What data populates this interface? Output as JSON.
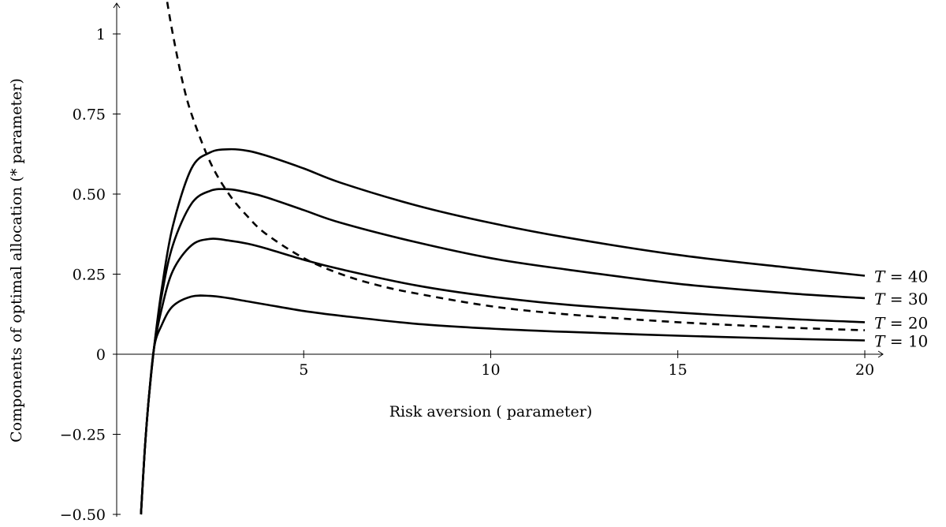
{
  "chart_data": {
    "type": "line",
    "title": "",
    "xlabel": "Risk aversion ( parameter)",
    "ylabel": "Components of optimal allocation (* parameter)",
    "xlim": [
      0,
      21
    ],
    "ylim": [
      -0.5,
      1.1
    ],
    "xticks": [
      {
        "value": 5,
        "label": "5"
      },
      {
        "value": 10,
        "label": "10"
      },
      {
        "value": 15,
        "label": "15"
      },
      {
        "value": 20,
        "label": "20"
      }
    ],
    "yticks": [
      {
        "value": -0.5,
        "label": "−0.50"
      },
      {
        "value": -0.25,
        "label": "−0.25"
      },
      {
        "value": 0,
        "label": "0"
      },
      {
        "value": 0.25,
        "label": "0.25"
      },
      {
        "value": 0.5,
        "label": "0.50"
      },
      {
        "value": 0.75,
        "label": "0.75"
      },
      {
        "value": 1,
        "label": "1"
      }
    ],
    "grid": false,
    "legend": "none",
    "series": [
      {
        "name": "T = 40",
        "style": "solid",
        "x": [
          0.65,
          0.75,
          0.85,
          1.0,
          1.2,
          1.5,
          2.0,
          2.5,
          3.0,
          3.5,
          4.0,
          5.0,
          6.0,
          8.0,
          10.0,
          12.0,
          15.0,
          18.0,
          20.0
        ],
        "y": [
          -0.5,
          -0.3,
          -0.15,
          0.02,
          0.2,
          0.4,
          0.58,
          0.63,
          0.64,
          0.635,
          0.62,
          0.58,
          0.535,
          0.465,
          0.41,
          0.365,
          0.31,
          0.27,
          0.245
        ]
      },
      {
        "name": "T = 30",
        "style": "solid",
        "x": [
          0.65,
          0.75,
          0.85,
          1.0,
          1.2,
          1.5,
          2.0,
          2.5,
          3.0,
          3.5,
          4.0,
          5.0,
          6.0,
          8.0,
          10.0,
          12.0,
          15.0,
          18.0,
          20.0
        ],
        "y": [
          -0.5,
          -0.3,
          -0.15,
          0.02,
          0.18,
          0.34,
          0.47,
          0.51,
          0.515,
          0.505,
          0.49,
          0.45,
          0.41,
          0.35,
          0.3,
          0.265,
          0.22,
          0.19,
          0.175
        ]
      },
      {
        "name": "T = 20",
        "style": "solid",
        "x": [
          0.65,
          0.75,
          0.85,
          1.0,
          1.2,
          1.5,
          2.0,
          2.5,
          3.0,
          3.5,
          4.0,
          5.0,
          6.0,
          8.0,
          10.0,
          12.0,
          15.0,
          18.0,
          20.0
        ],
        "y": [
          -0.5,
          -0.3,
          -0.15,
          0.02,
          0.14,
          0.26,
          0.34,
          0.36,
          0.355,
          0.345,
          0.33,
          0.295,
          0.265,
          0.215,
          0.18,
          0.155,
          0.13,
          0.11,
          0.1
        ]
      },
      {
        "name": "T = 10",
        "style": "solid",
        "x": [
          0.65,
          0.75,
          0.85,
          1.0,
          1.2,
          1.5,
          2.0,
          2.5,
          3.0,
          3.5,
          4.0,
          5.0,
          6.0,
          8.0,
          10.0,
          12.0,
          15.0,
          18.0,
          20.0
        ],
        "y": [
          -0.5,
          -0.3,
          -0.15,
          0.02,
          0.09,
          0.15,
          0.18,
          0.182,
          0.175,
          0.165,
          0.155,
          0.135,
          0.12,
          0.095,
          0.08,
          0.07,
          0.058,
          0.048,
          0.043
        ]
      },
      {
        "name": "",
        "style": "dashed",
        "x": [
          1.35,
          1.5,
          1.75,
          2.0,
          2.5,
          3.0,
          3.5,
          4.0,
          5.0,
          6.0,
          7.0,
          8.0,
          10.0,
          12.0,
          15.0,
          18.0,
          20.0
        ],
        "y": [
          1.1,
          1.0,
          0.857,
          0.75,
          0.6,
          0.5,
          0.43,
          0.375,
          0.3,
          0.25,
          0.215,
          0.19,
          0.15,
          0.125,
          0.1,
          0.083,
          0.075
        ]
      }
    ],
    "annotations": [
      {
        "prefix": "T",
        "text": " = 40",
        "series": "T = 40"
      },
      {
        "prefix": "T",
        "text": " = 30",
        "series": "T = 30"
      },
      {
        "prefix": "T",
        "text": " = 20",
        "series": "T = 20"
      },
      {
        "prefix": "T",
        "text": " = 10",
        "series": "T = 10"
      }
    ]
  }
}
